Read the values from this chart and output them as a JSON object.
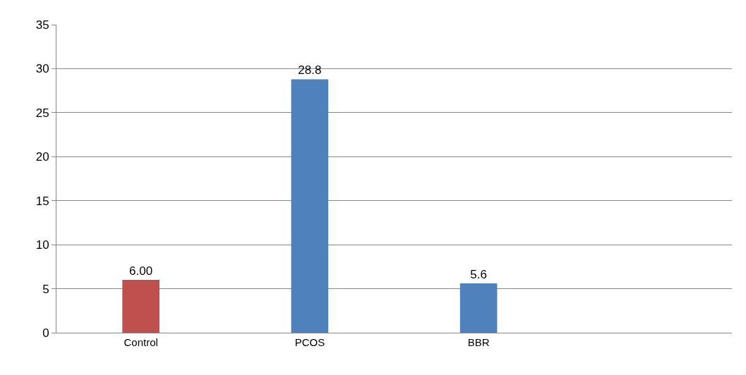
{
  "chart_data": {
    "type": "bar",
    "categories": [
      "Control",
      "PCOS",
      "BBR",
      null
    ],
    "values": [
      6.0,
      28.8,
      5.6,
      null
    ],
    "value_labels": [
      "6.00",
      "28.8",
      "5.6",
      null
    ],
    "colors": [
      "#c0504d",
      "#4f81bd",
      "#4f81bd",
      "#4f81bd"
    ],
    "ylim": [
      0,
      35
    ],
    "yticks": [
      0,
      5,
      10,
      15,
      20,
      25,
      30,
      35
    ],
    "grid": "y"
  }
}
